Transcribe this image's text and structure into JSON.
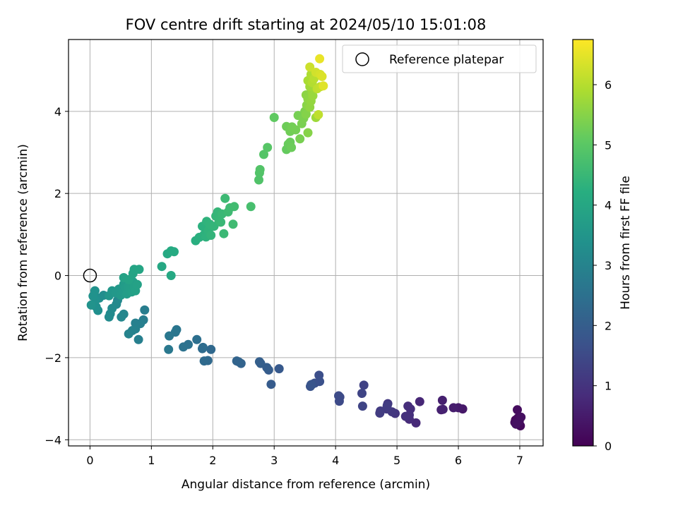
{
  "chart_data": {
    "type": "scatter",
    "title": "FOV centre drift starting at 2024/05/10 15:01:08",
    "xlabel": "Angular distance from reference (arcmin)",
    "ylabel": "Rotation from reference (arcmin)",
    "colorbar_label": "Hours from first FF file",
    "xlim": [
      -0.35,
      7.38
    ],
    "ylim": [
      -4.15,
      5.75
    ],
    "x_ticks": [
      0,
      1,
      2,
      3,
      4,
      5,
      6,
      7
    ],
    "y_ticks": [
      -4,
      -2,
      0,
      2,
      4
    ],
    "colorbar_range": [
      0,
      6.75
    ],
    "colorbar_ticks": [
      0,
      1,
      2,
      3,
      4,
      5,
      6
    ],
    "colormap": "viridis",
    "grid": true,
    "legend": {
      "placement": "top-right",
      "label": "Reference platepar"
    },
    "reference_point": {
      "x": 0,
      "y": 0
    },
    "points": [
      [
        6.93,
        -3.52,
        0.1
      ],
      [
        6.95,
        -3.58,
        0.12
      ],
      [
        7.01,
        -3.66,
        0.15
      ],
      [
        6.97,
        -3.47,
        0.18
      ],
      [
        6.92,
        -3.58,
        0.2
      ],
      [
        6.96,
        -3.27,
        0.22
      ],
      [
        6.99,
        -3.55,
        0.25
      ],
      [
        7.02,
        -3.45,
        0.27
      ],
      [
        6.94,
        -3.62,
        0.3
      ],
      [
        6.07,
        -3.25,
        0.45
      ],
      [
        6.0,
        -3.22,
        0.5
      ],
      [
        5.92,
        -3.22,
        0.55
      ],
      [
        5.74,
        -3.04,
        0.6
      ],
      [
        5.72,
        -3.27,
        0.63
      ],
      [
        5.75,
        -3.26,
        0.65
      ],
      [
        5.37,
        -3.07,
        0.75
      ],
      [
        5.31,
        -3.59,
        0.8
      ],
      [
        5.2,
        -3.5,
        0.85
      ],
      [
        5.22,
        -3.25,
        0.88
      ],
      [
        5.18,
        -3.18,
        0.9
      ],
      [
        5.2,
        -3.4,
        0.93
      ],
      [
        5.14,
        -3.43,
        0.95
      ],
      [
        4.97,
        -3.36,
        1.05
      ],
      [
        4.92,
        -3.32,
        1.1
      ],
      [
        4.85,
        -3.12,
        1.12
      ],
      [
        4.83,
        -3.25,
        1.15
      ],
      [
        4.73,
        -3.3,
        1.18
      ],
      [
        4.72,
        -3.35,
        1.2
      ],
      [
        4.84,
        -3.17,
        1.22
      ],
      [
        4.46,
        -2.67,
        1.35
      ],
      [
        4.43,
        -2.87,
        1.38
      ],
      [
        4.44,
        -3.18,
        1.4
      ],
      [
        4.07,
        -2.96,
        1.5
      ],
      [
        4.06,
        -3.06,
        1.52
      ],
      [
        4.05,
        -2.93,
        1.55
      ],
      [
        3.73,
        -2.43,
        1.65
      ],
      [
        3.74,
        -2.58,
        1.68
      ],
      [
        3.66,
        -2.62,
        1.7
      ],
      [
        3.62,
        -2.65,
        1.72
      ],
      [
        3.59,
        -2.7,
        1.75
      ],
      [
        3.6,
        -2.66,
        1.78
      ],
      [
        3.08,
        -2.27,
        1.9
      ],
      [
        2.95,
        -2.65,
        1.95
      ],
      [
        2.91,
        -2.3,
        1.98
      ],
      [
        2.88,
        -2.24,
        2.0
      ],
      [
        2.78,
        -2.14,
        2.02
      ],
      [
        2.76,
        -2.1,
        2.05
      ],
      [
        2.46,
        -2.14,
        2.15
      ],
      [
        2.42,
        -2.1,
        2.18
      ],
      [
        2.39,
        -2.08,
        2.2
      ],
      [
        1.97,
        -1.8,
        2.3
      ],
      [
        1.92,
        -2.07,
        2.32
      ],
      [
        1.86,
        -2.08,
        2.35
      ],
      [
        1.83,
        -1.78,
        2.37
      ],
      [
        1.84,
        -1.75,
        2.4
      ],
      [
        1.74,
        -1.56,
        2.48
      ],
      [
        1.6,
        -1.68,
        2.52
      ],
      [
        1.52,
        -1.74,
        2.55
      ],
      [
        1.41,
        -1.32,
        2.65
      ],
      [
        1.39,
        -1.38,
        2.68
      ],
      [
        1.29,
        -1.47,
        2.7
      ],
      [
        1.28,
        -1.8,
        2.72
      ],
      [
        0.89,
        -0.84,
        2.85
      ],
      [
        0.87,
        -1.08,
        2.87
      ],
      [
        0.82,
        -1.17,
        2.9
      ],
      [
        0.79,
        -1.56,
        2.92
      ],
      [
        0.74,
        -1.16,
        2.95
      ],
      [
        0.74,
        -1.3,
        2.97
      ],
      [
        0.69,
        -1.34,
        3.0
      ],
      [
        0.63,
        -1.42,
        3.02
      ],
      [
        0.55,
        -0.94,
        3.1
      ],
      [
        0.51,
        -1.01,
        3.12
      ],
      [
        0.45,
        -0.6,
        3.15
      ],
      [
        0.43,
        -0.7,
        3.18
      ],
      [
        0.36,
        -0.8,
        3.2
      ],
      [
        0.33,
        -0.93,
        3.22
      ],
      [
        0.31,
        -1.01,
        3.25
      ],
      [
        0.22,
        -0.48,
        3.3
      ],
      [
        0.15,
        -0.55,
        3.32
      ],
      [
        0.13,
        -0.85,
        3.35
      ],
      [
        0.1,
        -0.76,
        3.38
      ],
      [
        0.09,
        -0.6,
        3.4
      ],
      [
        0.08,
        -0.37,
        3.42
      ],
      [
        0.05,
        -0.5,
        3.44
      ],
      [
        0.02,
        -0.72,
        3.46
      ],
      [
        0.31,
        -0.49,
        3.55
      ],
      [
        0.36,
        -0.37,
        3.58
      ],
      [
        0.42,
        -0.42,
        3.6
      ],
      [
        0.47,
        -0.33,
        3.62
      ],
      [
        0.5,
        -0.48,
        3.65
      ],
      [
        0.54,
        -0.39,
        3.68
      ],
      [
        0.55,
        -0.21,
        3.7
      ],
      [
        0.58,
        -0.3,
        3.72
      ],
      [
        0.6,
        -0.45,
        3.74
      ],
      [
        0.62,
        -0.27,
        3.76
      ],
      [
        0.65,
        -0.33,
        3.78
      ],
      [
        0.68,
        -0.4,
        3.8
      ],
      [
        0.7,
        -0.15,
        3.82
      ],
      [
        0.72,
        -0.28,
        3.84
      ],
      [
        0.74,
        -0.37,
        3.86
      ],
      [
        0.77,
        -0.22,
        3.88
      ],
      [
        0.55,
        -0.05,
        3.9
      ],
      [
        0.63,
        -0.1,
        3.92
      ],
      [
        0.7,
        0.05,
        3.94
      ],
      [
        0.72,
        0.15,
        3.96
      ],
      [
        0.8,
        0.15,
        3.98
      ],
      [
        1.17,
        0.22,
        4.05
      ],
      [
        1.32,
        0.0,
        4.08
      ],
      [
        1.26,
        0.53,
        4.1
      ],
      [
        1.32,
        0.6,
        4.12
      ],
      [
        1.37,
        0.58,
        4.14
      ],
      [
        1.72,
        0.85,
        4.25
      ],
      [
        1.78,
        0.93,
        4.28
      ],
      [
        1.83,
        1.2,
        4.3
      ],
      [
        1.86,
        1.0,
        4.32
      ],
      [
        1.89,
        0.94,
        4.34
      ],
      [
        1.9,
        1.32,
        4.36
      ],
      [
        1.93,
        1.1,
        4.38
      ],
      [
        1.95,
        1.25,
        4.4
      ],
      [
        1.97,
        0.98,
        4.42
      ],
      [
        2.02,
        1.2,
        4.44
      ],
      [
        2.05,
        1.45,
        4.46
      ],
      [
        2.08,
        1.55,
        4.48
      ],
      [
        2.1,
        1.35,
        4.5
      ],
      [
        2.13,
        1.3,
        4.52
      ],
      [
        2.15,
        1.5,
        4.54
      ],
      [
        2.18,
        1.02,
        4.56
      ],
      [
        2.2,
        1.88,
        4.58
      ],
      [
        2.25,
        1.55,
        4.6
      ],
      [
        2.28,
        1.65,
        4.62
      ],
      [
        2.33,
        1.25,
        4.64
      ],
      [
        2.35,
        1.68,
        4.66
      ],
      [
        2.62,
        1.68,
        4.75
      ],
      [
        2.75,
        2.33,
        4.88
      ],
      [
        2.76,
        2.5,
        4.9
      ],
      [
        2.77,
        2.58,
        4.92
      ],
      [
        2.83,
        2.95,
        4.95
      ],
      [
        2.89,
        3.12,
        4.98
      ],
      [
        3.0,
        3.85,
        5.1
      ],
      [
        3.2,
        3.07,
        5.15
      ],
      [
        3.23,
        3.2,
        5.18
      ],
      [
        3.26,
        3.25,
        5.2
      ],
      [
        3.28,
        3.12,
        5.22
      ],
      [
        3.2,
        3.63,
        5.25
      ],
      [
        3.26,
        3.51,
        5.28
      ],
      [
        3.29,
        3.62,
        5.3
      ],
      [
        3.35,
        3.55,
        5.32
      ],
      [
        3.39,
        3.9,
        5.34
      ],
      [
        3.42,
        3.33,
        5.36
      ],
      [
        3.45,
        3.7,
        5.38
      ],
      [
        3.48,
        3.83,
        5.4
      ],
      [
        3.5,
        4.0,
        5.42
      ],
      [
        3.52,
        3.93,
        5.5
      ],
      [
        3.55,
        3.48,
        5.52
      ],
      [
        3.53,
        4.15,
        5.55
      ],
      [
        3.52,
        4.4,
        5.58
      ],
      [
        3.55,
        4.3,
        5.6
      ],
      [
        3.58,
        4.1,
        5.63
      ],
      [
        3.6,
        4.25,
        5.66
      ],
      [
        3.62,
        4.45,
        5.7
      ],
      [
        3.63,
        4.38,
        5.72
      ],
      [
        3.65,
        4.55,
        5.75
      ],
      [
        3.68,
        3.85,
        5.78
      ],
      [
        3.58,
        4.6,
        5.8
      ],
      [
        3.55,
        4.75,
        5.9
      ],
      [
        3.6,
        4.9,
        5.95
      ],
      [
        3.62,
        4.7,
        6.0
      ],
      [
        3.65,
        4.8,
        6.05
      ],
      [
        3.7,
        4.55,
        6.1
      ],
      [
        3.72,
        3.92,
        6.12
      ],
      [
        3.75,
        4.6,
        6.15
      ],
      [
        3.58,
        5.08,
        6.25
      ],
      [
        3.68,
        4.95,
        6.3
      ],
      [
        3.75,
        4.9,
        6.35
      ],
      [
        3.78,
        4.85,
        6.4
      ],
      [
        3.8,
        4.62,
        6.45
      ],
      [
        3.74,
        5.28,
        6.55
      ]
    ]
  }
}
